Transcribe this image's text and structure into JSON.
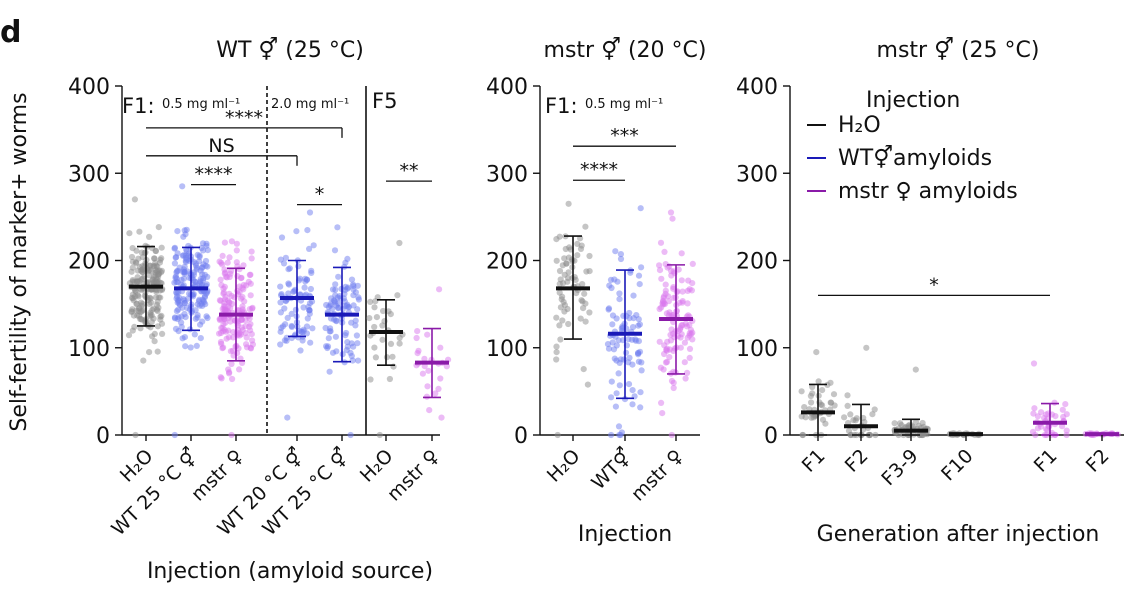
{
  "panel_label": "d",
  "colors": {
    "black": "#111111",
    "gray": "#8c8c8c",
    "blue": "#1a1ab8",
    "blue_light": "#6f7df0",
    "purple": "#8a1aa8",
    "purple_light": "#d977ee"
  },
  "chart_data": [
    {
      "type": "scatter",
      "title": "WT ⚥ (25 °C)",
      "ylabel": "Self-fertility of marker+ worms",
      "xlabel": "Injection (amyloid source)",
      "ylim": [
        0,
        400
      ],
      "yticks": [
        "0",
        "100",
        "200",
        "300",
        "400"
      ],
      "section_labels": [
        "F1:",
        "0.5 mg ml⁻¹",
        "2.0 mg ml⁻¹",
        "F5"
      ],
      "categories": [
        "H₂O",
        "WT 25 °C ⚥",
        "mstr ♀",
        "WT 20 °C ⚥",
        "WT 25 °C ⚥",
        "H₂O",
        "mstr ♀"
      ],
      "series": [
        {
          "category": "H₂O",
          "color": "black",
          "points": "gray",
          "n": 200,
          "mean": 170,
          "sd_low": 125,
          "sd_high": 216,
          "min": 0,
          "max": 270
        },
        {
          "category": "WT 25 °C ⚥",
          "color": "blue",
          "points": "blue_light",
          "n": 180,
          "mean": 168,
          "sd_low": 120,
          "sd_high": 215,
          "min": 0,
          "max": 285
        },
        {
          "category": "mstr ♀",
          "color": "purple",
          "points": "purple_light",
          "n": 170,
          "mean": 138,
          "sd_low": 85,
          "sd_high": 191,
          "min": 0,
          "max": 222
        },
        {
          "category": "WT 20 °C ⚥",
          "color": "blue",
          "points": "blue_light",
          "n": 90,
          "mean": 157,
          "sd_low": 113,
          "sd_high": 200,
          "min": 20,
          "max": 255
        },
        {
          "category": "WT 25 °C ⚥",
          "color": "blue",
          "points": "blue_light",
          "n": 95,
          "mean": 138,
          "sd_low": 84,
          "sd_high": 192,
          "min": 0,
          "max": 238
        },
        {
          "category": "H₂O",
          "color": "black",
          "points": "gray",
          "n": 30,
          "mean": 118,
          "sd_low": 80,
          "sd_high": 155,
          "min": 0,
          "max": 220
        },
        {
          "category": "mstr ♀",
          "color": "purple",
          "points": "purple_light",
          "n": 25,
          "mean": 83,
          "sd_low": 43,
          "sd_high": 122,
          "min": 20,
          "max": 167
        }
      ],
      "significance": [
        {
          "label": "****",
          "from": 1,
          "to": 5,
          "y": 352
        },
        {
          "label": "NS",
          "from": 1,
          "to": 4,
          "y": 320
        },
        {
          "label": "****",
          "from": 2,
          "to": 3,
          "y": 287
        },
        {
          "label": "*",
          "from": 4,
          "to": 5,
          "y": 264
        },
        {
          "label": "**",
          "from": 6,
          "to": 7,
          "y": 291
        }
      ]
    },
    {
      "type": "scatter",
      "title": "mstr ⚥ (20 °C)",
      "xlabel": "Injection",
      "ylim": [
        0,
        400
      ],
      "yticks": [
        "0",
        "100",
        "200",
        "300",
        "400"
      ],
      "section_labels": [
        "F1:",
        "0.5 mg ml⁻¹"
      ],
      "categories": [
        "H₂O",
        "WT⚥",
        "mstr ♀"
      ],
      "series": [
        {
          "category": "H₂O",
          "color": "black",
          "points": "gray",
          "n": 70,
          "mean": 168,
          "sd_low": 110,
          "sd_high": 228,
          "min": 0,
          "max": 265
        },
        {
          "category": "WT⚥",
          "color": "blue",
          "points": "blue_light",
          "n": 90,
          "mean": 116,
          "sd_low": 42,
          "sd_high": 189,
          "min": 0,
          "max": 260
        },
        {
          "category": "mstr ♀",
          "color": "purple",
          "points": "purple_light",
          "n": 120,
          "mean": 133,
          "sd_low": 70,
          "sd_high": 195,
          "min": 0,
          "max": 255
        }
      ],
      "significance": [
        {
          "label": "***",
          "from": 1,
          "to": 3,
          "y": 331
        },
        {
          "label": "****",
          "from": 1,
          "to": 2,
          "y": 292
        }
      ]
    },
    {
      "type": "scatter",
      "title": "mstr ⚥ (25 °C)",
      "xlabel": "Generation after injection",
      "ylim": [
        0,
        400
      ],
      "yticks": [
        "0",
        "100",
        "200",
        "300",
        "400"
      ],
      "categories": [
        "F1",
        "F2",
        "F3-9",
        "F10",
        "F1",
        "F2"
      ],
      "legend": {
        "title": "Injection",
        "items": [
          {
            "label": "H₂O",
            "color": "black"
          },
          {
            "label": "WT⚥amyloids",
            "color": "blue"
          },
          {
            "label": "mstr ♀ amyloids",
            "color": "purple"
          }
        ]
      },
      "series": [
        {
          "category": "F1",
          "color": "black",
          "points": "gray",
          "n": 40,
          "mean": 26,
          "sd_low": 0,
          "sd_high": 58,
          "min": 0,
          "max": 95
        },
        {
          "category": "F2",
          "color": "black",
          "points": "gray",
          "n": 30,
          "mean": 10,
          "sd_low": 0,
          "sd_high": 35,
          "min": 0,
          "max": 100
        },
        {
          "category": "F3-9",
          "color": "black",
          "points": "gray",
          "n": 55,
          "mean": 5,
          "sd_low": 0,
          "sd_high": 18,
          "min": 0,
          "max": 75
        },
        {
          "category": "F10",
          "color": "black",
          "points": "gray",
          "n": 20,
          "mean": 1,
          "sd_low": 0,
          "sd_high": 2,
          "min": 0,
          "max": 2
        },
        {
          "category": "F1",
          "color": "purple",
          "points": "purple_light",
          "n": 40,
          "mean": 14,
          "sd_low": 0,
          "sd_high": 36,
          "min": 0,
          "max": 82
        },
        {
          "category": "F2",
          "color": "purple",
          "points": "purple_light",
          "n": 20,
          "mean": 1,
          "sd_low": 0,
          "sd_high": 2,
          "min": 0,
          "max": 2
        }
      ],
      "significance": [
        {
          "label": "*",
          "from": 1,
          "to": 5,
          "y": 160
        }
      ]
    }
  ]
}
